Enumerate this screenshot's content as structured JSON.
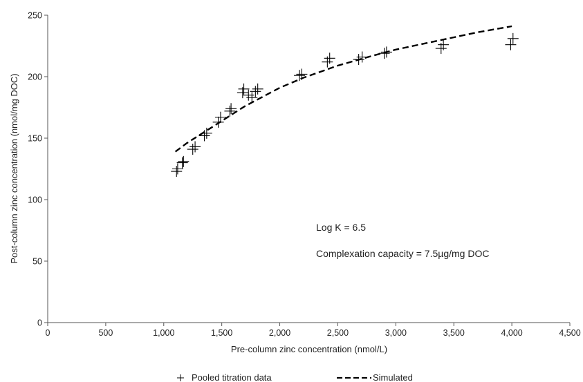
{
  "chart_data": {
    "type": "scatter",
    "xlabel": "Pre-column zinc concentration (nmol/L)",
    "ylabel": "Post-column zinc concentration (nmol/mg DOC)",
    "xlim": [
      0,
      4500
    ],
    "ylim": [
      0,
      250
    ],
    "x_ticks": [
      0,
      500,
      1000,
      1500,
      2000,
      2500,
      3000,
      3500,
      4000,
      4500
    ],
    "x_tick_labels": [
      "0",
      "500",
      "1,000",
      "1,500",
      "2,000",
      "2,500",
      "3,000",
      "3,500",
      "4,000",
      "4,500"
    ],
    "y_ticks": [
      0,
      50,
      100,
      150,
      200,
      250
    ],
    "y_tick_labels": [
      "0",
      "50",
      "100",
      "150",
      "200",
      "250"
    ],
    "grid": false,
    "legend_position": "bottom",
    "annotations": [
      "Log K = 6.5",
      "Complexation capacity = 7.5µg/mg DOC"
    ],
    "series": [
      {
        "name": "Pooled titration data",
        "kind": "marker",
        "marker": "plus",
        "color": "#000000",
        "points": [
          [
            1110,
            123
          ],
          [
            1120,
            125
          ],
          [
            1160,
            130
          ],
          [
            1170,
            131
          ],
          [
            1250,
            141
          ],
          [
            1270,
            143
          ],
          [
            1350,
            152
          ],
          [
            1370,
            154
          ],
          [
            1470,
            163
          ],
          [
            1490,
            167
          ],
          [
            1570,
            172
          ],
          [
            1580,
            174
          ],
          [
            1680,
            187
          ],
          [
            1690,
            190
          ],
          [
            1730,
            185
          ],
          [
            1760,
            183
          ],
          [
            1790,
            188
          ],
          [
            1810,
            190
          ],
          [
            2170,
            201
          ],
          [
            2190,
            202
          ],
          [
            2410,
            212
          ],
          [
            2430,
            215
          ],
          [
            2680,
            214
          ],
          [
            2710,
            216
          ],
          [
            2900,
            219
          ],
          [
            2920,
            220
          ],
          [
            3390,
            223
          ],
          [
            3410,
            226
          ],
          [
            3990,
            226
          ],
          [
            4010,
            231
          ]
        ]
      },
      {
        "name": "Simulated",
        "kind": "line",
        "style": "dashed",
        "color": "#000000",
        "points": [
          [
            1100,
            139
          ],
          [
            1200,
            146
          ],
          [
            1300,
            152
          ],
          [
            1400,
            158
          ],
          [
            1500,
            164
          ],
          [
            1600,
            170
          ],
          [
            1700,
            176
          ],
          [
            1800,
            181
          ],
          [
            2000,
            191
          ],
          [
            2200,
            199
          ],
          [
            2500,
            209
          ],
          [
            2800,
            217
          ],
          [
            3000,
            222
          ],
          [
            3400,
            230
          ],
          [
            3700,
            236
          ],
          [
            4000,
            241
          ]
        ]
      }
    ]
  }
}
